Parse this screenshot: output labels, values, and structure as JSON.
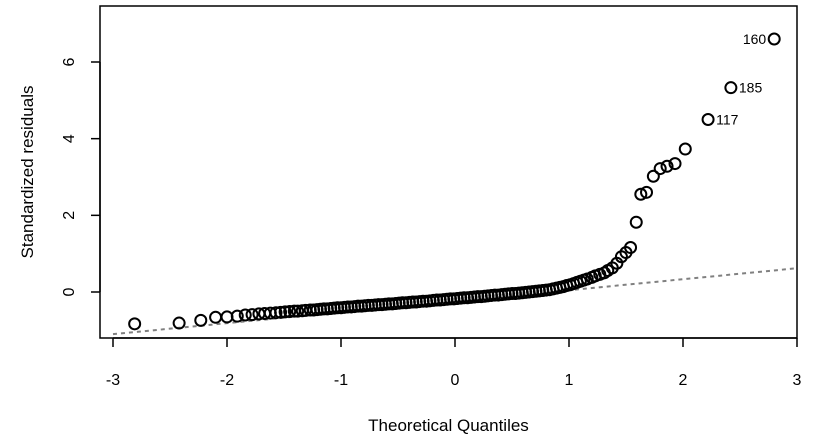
{
  "chart_data": {
    "type": "scatter",
    "title": "",
    "xlabel": "Theoretical Quantiles",
    "ylabel": "Standardized residuals",
    "xlim": [
      -3.0,
      3.0
    ],
    "ylim": [
      -1.15,
      6.95
    ],
    "x_ticks": [
      -3,
      -2,
      -1,
      0,
      1,
      2,
      3
    ],
    "y_ticks": [
      0,
      2,
      4,
      6
    ],
    "grid": false,
    "reference_line": {
      "style": "dashed",
      "color": "#808080",
      "x": [
        -3.0,
        3.0
      ],
      "y": [
        -1.1,
        0.62
      ]
    },
    "points": [
      [
        -2.81,
        -0.83
      ],
      [
        -2.42,
        -0.81
      ],
      [
        -2.23,
        -0.74
      ],
      [
        -2.1,
        -0.66
      ],
      [
        -2.0,
        -0.65
      ],
      [
        -1.91,
        -0.63
      ],
      [
        -1.84,
        -0.6
      ],
      [
        -1.78,
        -0.59
      ],
      [
        -1.72,
        -0.57
      ],
      [
        -1.67,
        -0.56
      ],
      [
        -1.62,
        -0.55
      ],
      [
        -1.57,
        -0.54
      ],
      [
        -1.53,
        -0.53
      ],
      [
        -1.49,
        -0.52
      ],
      [
        -1.45,
        -0.51
      ],
      [
        -1.41,
        -0.5
      ],
      [
        -1.38,
        -0.5
      ],
      [
        -1.34,
        -0.49
      ],
      [
        -1.31,
        -0.48
      ],
      [
        -1.27,
        -0.47
      ],
      [
        -1.24,
        -0.47
      ],
      [
        -1.21,
        -0.46
      ],
      [
        -1.18,
        -0.45
      ],
      [
        -1.15,
        -0.44
      ],
      [
        -1.12,
        -0.44
      ],
      [
        -1.09,
        -0.43
      ],
      [
        -1.06,
        -0.42
      ],
      [
        -1.03,
        -0.41
      ],
      [
        -1.0,
        -0.41
      ],
      [
        -0.97,
        -0.4
      ],
      [
        -0.94,
        -0.39
      ],
      [
        -0.91,
        -0.39
      ],
      [
        -0.88,
        -0.38
      ],
      [
        -0.85,
        -0.37
      ],
      [
        -0.82,
        -0.37
      ],
      [
        -0.79,
        -0.36
      ],
      [
        -0.76,
        -0.35
      ],
      [
        -0.73,
        -0.35
      ],
      [
        -0.7,
        -0.34
      ],
      [
        -0.67,
        -0.33
      ],
      [
        -0.64,
        -0.33
      ],
      [
        -0.61,
        -0.32
      ],
      [
        -0.58,
        -0.31
      ],
      [
        -0.55,
        -0.31
      ],
      [
        -0.52,
        -0.3
      ],
      [
        -0.49,
        -0.29
      ],
      [
        -0.46,
        -0.28
      ],
      [
        -0.43,
        -0.28
      ],
      [
        -0.4,
        -0.27
      ],
      [
        -0.37,
        -0.26
      ],
      [
        -0.34,
        -0.26
      ],
      [
        -0.31,
        -0.25
      ],
      [
        -0.28,
        -0.24
      ],
      [
        -0.25,
        -0.24
      ],
      [
        -0.22,
        -0.23
      ],
      [
        -0.19,
        -0.22
      ],
      [
        -0.16,
        -0.21
      ],
      [
        -0.13,
        -0.21
      ],
      [
        -0.1,
        -0.2
      ],
      [
        -0.07,
        -0.19
      ],
      [
        -0.04,
        -0.18
      ],
      [
        -0.01,
        -0.18
      ],
      [
        0.02,
        -0.17
      ],
      [
        0.05,
        -0.16
      ],
      [
        0.08,
        -0.15
      ],
      [
        0.11,
        -0.15
      ],
      [
        0.14,
        -0.14
      ],
      [
        0.17,
        -0.13
      ],
      [
        0.2,
        -0.12
      ],
      [
        0.23,
        -0.12
      ],
      [
        0.26,
        -0.11
      ],
      [
        0.29,
        -0.1
      ],
      [
        0.32,
        -0.09
      ],
      [
        0.35,
        -0.08
      ],
      [
        0.38,
        -0.08
      ],
      [
        0.41,
        -0.07
      ],
      [
        0.44,
        -0.06
      ],
      [
        0.47,
        -0.05
      ],
      [
        0.5,
        -0.04
      ],
      [
        0.53,
        -0.04
      ],
      [
        0.56,
        -0.03
      ],
      [
        0.59,
        -0.02
      ],
      [
        0.62,
        -0.01
      ],
      [
        0.65,
        0.0
      ],
      [
        0.68,
        0.01
      ],
      [
        0.71,
        0.02
      ],
      [
        0.74,
        0.03
      ],
      [
        0.77,
        0.04
      ],
      [
        0.8,
        0.05
      ],
      [
        0.83,
        0.06
      ],
      [
        0.86,
        0.08
      ],
      [
        0.89,
        0.1
      ],
      [
        0.92,
        0.12
      ],
      [
        0.95,
        0.14
      ],
      [
        0.98,
        0.17
      ],
      [
        1.01,
        0.19
      ],
      [
        1.04,
        0.22
      ],
      [
        1.07,
        0.25
      ],
      [
        1.1,
        0.28
      ],
      [
        1.13,
        0.31
      ],
      [
        1.16,
        0.34
      ],
      [
        1.2,
        0.38
      ],
      [
        1.23,
        0.42
      ],
      [
        1.27,
        0.46
      ],
      [
        1.31,
        0.5
      ],
      [
        1.34,
        0.56
      ],
      [
        1.38,
        0.63
      ],
      [
        1.42,
        0.75
      ],
      [
        1.46,
        0.92
      ],
      [
        1.5,
        1.03
      ],
      [
        1.54,
        1.16
      ],
      [
        1.59,
        1.82
      ],
      [
        1.63,
        2.55
      ],
      [
        1.68,
        2.6
      ],
      [
        1.74,
        3.02
      ],
      [
        1.8,
        3.22
      ],
      [
        1.86,
        3.28
      ],
      [
        1.93,
        3.35
      ],
      [
        2.02,
        3.73
      ],
      [
        2.22,
        4.5
      ],
      [
        2.42,
        5.33
      ],
      [
        2.8,
        6.6
      ]
    ],
    "annotations": [
      {
        "text": "117",
        "x": 2.22,
        "y": 4.5,
        "position": "right"
      },
      {
        "text": "185",
        "x": 2.42,
        "y": 5.33,
        "position": "right"
      },
      {
        "text": "160",
        "x": 2.8,
        "y": 6.6,
        "position": "left"
      }
    ]
  }
}
